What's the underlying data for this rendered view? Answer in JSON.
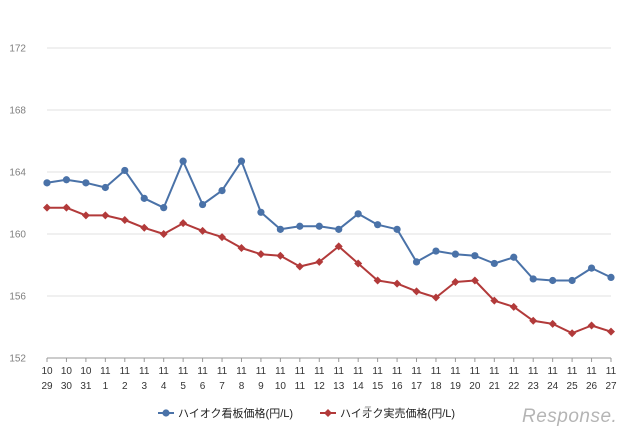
{
  "chart_data": {
    "type": "line",
    "title": "",
    "xlabel": "",
    "ylabel": "",
    "ylim": [
      152,
      172
    ],
    "yticks": [
      152,
      156,
      160,
      164,
      168,
      172
    ],
    "grid": true,
    "legend_position": "bottom",
    "categories": [
      [
        "10",
        "29"
      ],
      [
        "10",
        "30"
      ],
      [
        "10",
        "31"
      ],
      [
        "11",
        "1"
      ],
      [
        "11",
        "2"
      ],
      [
        "11",
        "3"
      ],
      [
        "11",
        "4"
      ],
      [
        "11",
        "5"
      ],
      [
        "11",
        "6"
      ],
      [
        "11",
        "7"
      ],
      [
        "11",
        "8"
      ],
      [
        "11",
        "9"
      ],
      [
        "11",
        "10"
      ],
      [
        "11",
        "11"
      ],
      [
        "11",
        "12"
      ],
      [
        "11",
        "13"
      ],
      [
        "11",
        "14"
      ],
      [
        "11",
        "15"
      ],
      [
        "11",
        "16"
      ],
      [
        "11",
        "17"
      ],
      [
        "11",
        "18"
      ],
      [
        "11",
        "19"
      ],
      [
        "11",
        "20"
      ],
      [
        "11",
        "21"
      ],
      [
        "11",
        "22"
      ],
      [
        "11",
        "23"
      ],
      [
        "11",
        "24"
      ],
      [
        "11",
        "25"
      ],
      [
        "11",
        "26"
      ],
      [
        "11",
        "27"
      ]
    ],
    "series": [
      {
        "name": "ハイオク看板価格(円/L)",
        "color": "#4a72a8",
        "marker": "circle",
        "values": [
          163.3,
          163.5,
          163.3,
          163.0,
          164.1,
          162.3,
          161.7,
          164.7,
          161.9,
          162.8,
          164.7,
          161.4,
          160.3,
          160.5,
          160.5,
          160.3,
          161.3,
          160.6,
          160.3,
          158.2,
          158.9,
          158.7,
          158.6,
          158.1,
          158.5,
          157.1,
          157.0,
          157.0,
          157.8,
          157.2
        ]
      },
      {
        "name": "ハイオク実売価格(円/L)",
        "color": "#b23a3a",
        "marker": "diamond",
        "values": [
          161.7,
          161.7,
          161.2,
          161.2,
          160.9,
          160.4,
          160.0,
          160.7,
          160.2,
          159.8,
          159.1,
          158.7,
          158.6,
          157.9,
          158.2,
          159.2,
          158.1,
          157.0,
          156.8,
          156.3,
          155.9,
          156.9,
          157.0,
          155.7,
          155.3,
          154.4,
          154.2,
          153.6,
          154.1,
          153.7
        ]
      }
    ]
  },
  "watermark": {
    "text": "Response."
  }
}
